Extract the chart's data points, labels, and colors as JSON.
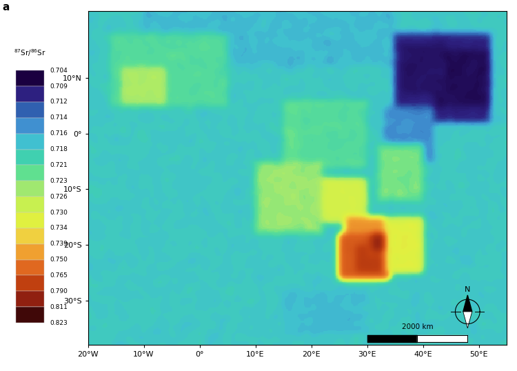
{
  "colorbar_label": "$^{87}$Sr/$^{86}$Sr",
  "colorbar_values": [
    0.704,
    0.709,
    0.712,
    0.714,
    0.716,
    0.718,
    0.721,
    0.723,
    0.726,
    0.73,
    0.734,
    0.739,
    0.75,
    0.765,
    0.79,
    0.811,
    0.823
  ],
  "colorbar_colors": [
    "#1a0040",
    "#2d2080",
    "#3060b0",
    "#4090d0",
    "#40c0d0",
    "#40d0b0",
    "#60e090",
    "#a0e870",
    "#c8f050",
    "#e0f040",
    "#f0d040",
    "#f0a030",
    "#e06820",
    "#c04010",
    "#902010",
    "#701010",
    "#400808"
  ],
  "xlim": [
    -20,
    55
  ],
  "ylim": [
    -38,
    22
  ],
  "xticks": [
    -20,
    -10,
    0,
    10,
    20,
    30,
    40,
    50
  ],
  "yticks": [
    -30,
    -20,
    -10,
    0,
    10
  ],
  "scale_bar_label": "2000 km",
  "background_color": "#ffffff",
  "letter_label": "a",
  "north_arrow_lon": 48,
  "north_arrow_lat": -32,
  "scale_lon_start": 30,
  "scale_lon_end": 48,
  "scale_lat": -37.5,
  "scale_lat_top": -36.2
}
